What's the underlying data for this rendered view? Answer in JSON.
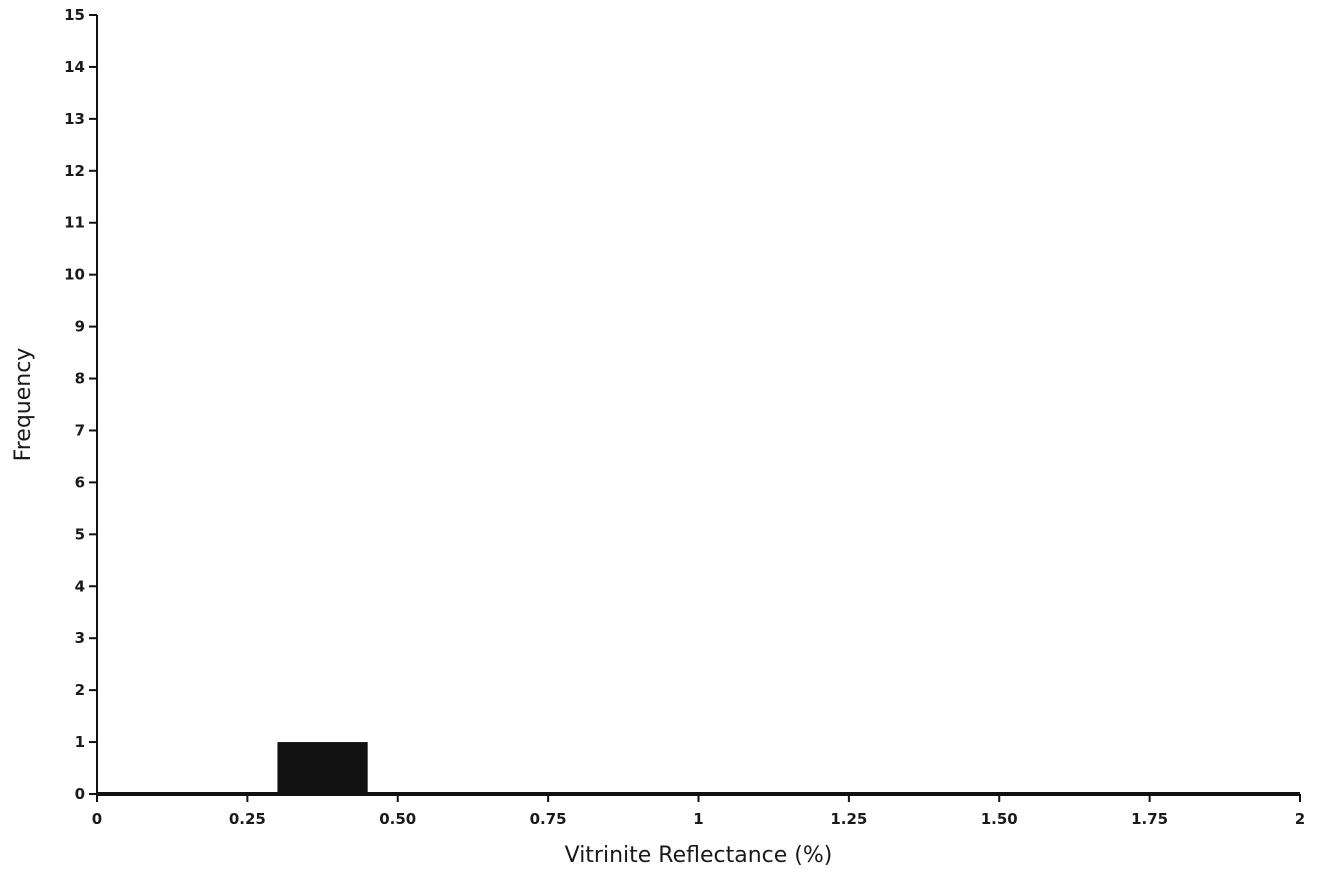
{
  "chart_data": {
    "type": "bar",
    "title": "",
    "xlabel": "Vitrinite Reflectance (%)",
    "ylabel": "Frequency",
    "xlim": [
      0,
      2
    ],
    "ylim": [
      0,
      15
    ],
    "x_ticks": [
      {
        "value": 0,
        "label": "0"
      },
      {
        "value": 0.25,
        "label": "0.25"
      },
      {
        "value": 0.5,
        "label": "0.50"
      },
      {
        "value": 0.75,
        "label": "0.75"
      },
      {
        "value": 1,
        "label": "1"
      },
      {
        "value": 1.25,
        "label": "1.25"
      },
      {
        "value": 1.5,
        "label": "1.50"
      },
      {
        "value": 1.75,
        "label": "1.75"
      },
      {
        "value": 2,
        "label": "2"
      }
    ],
    "y_ticks": [
      0,
      1,
      2,
      3,
      4,
      5,
      6,
      7,
      8,
      9,
      10,
      11,
      12,
      13,
      14,
      15
    ],
    "bins": [
      {
        "x_start": 0.3,
        "x_end": 0.45,
        "value": 1
      }
    ],
    "grid": false,
    "legend": "none",
    "colors": {
      "bar": "#111111",
      "axis": "#111111",
      "text": "#1a1a1a"
    }
  }
}
